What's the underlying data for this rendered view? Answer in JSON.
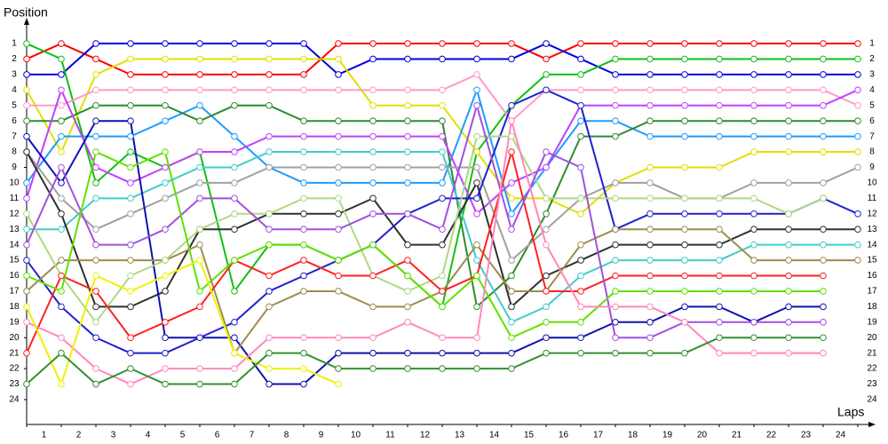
{
  "chart_data": {
    "type": "line",
    "y_label": "Position",
    "x_label": "Laps",
    "x": [
      0,
      1,
      2,
      3,
      4,
      5,
      6,
      7,
      8,
      9,
      10,
      11,
      12,
      13,
      14,
      15,
      16,
      17,
      18,
      19,
      20,
      21,
      22,
      23,
      24
    ],
    "laps": [
      "1",
      "2",
      "3",
      "4",
      "5",
      "6",
      "7",
      "8",
      "9",
      "10",
      "11",
      "12",
      "13",
      "14",
      "15",
      "16",
      "17",
      "18",
      "19",
      "20",
      "21",
      "22",
      "23",
      "24"
    ],
    "xlim": [
      0,
      24
    ],
    "ylim": [
      0,
      25
    ],
    "y_inverted": true,
    "yticks": [
      1,
      2,
      3,
      4,
      5,
      6,
      7,
      8,
      9,
      10,
      11,
      12,
      13,
      14,
      15,
      16,
      17,
      18,
      19,
      20,
      21,
      22,
      23,
      24
    ],
    "series": [
      {
        "color": "#ff0000",
        "values": [
          2,
          1,
          2,
          3,
          3,
          3,
          3,
          3,
          3,
          1,
          1,
          1,
          1,
          1,
          1,
          2,
          1,
          1,
          1,
          1,
          1,
          1,
          1,
          1,
          1
        ]
      },
      {
        "color": "#0000e0",
        "values": [
          3,
          3,
          1,
          1,
          1,
          1,
          1,
          1,
          1,
          3,
          2,
          2,
          2,
          2,
          2,
          1,
          2,
          3,
          3,
          3,
          3,
          3,
          3,
          3,
          3
        ]
      },
      {
        "color": "#10c010",
        "values": [
          1,
          2,
          10,
          8,
          9,
          8,
          17,
          14,
          14,
          15,
          14,
          16,
          18,
          8,
          5,
          3,
          3,
          2,
          2,
          2,
          2,
          2,
          2,
          2,
          2
        ]
      },
      {
        "color": "#e0e000",
        "values": [
          4,
          8,
          3,
          2,
          2,
          2,
          2,
          2,
          2,
          2,
          5,
          5,
          5,
          8,
          11,
          11,
          12,
          10,
          9,
          9,
          9,
          8,
          8,
          8,
          8
        ]
      },
      {
        "color": "#ff99cc",
        "values": [
          5,
          5,
          4,
          4,
          4,
          4,
          4,
          4,
          4,
          4,
          4,
          4,
          4,
          3,
          6,
          4,
          4,
          4,
          4,
          4,
          4,
          4,
          4,
          4,
          5
        ]
      },
      {
        "color": "#1e9bff",
        "values": [
          10,
          7,
          7,
          7,
          6,
          5,
          7,
          9,
          10,
          10,
          10,
          10,
          10,
          4,
          12,
          9,
          6,
          6,
          7,
          7,
          7,
          7,
          7,
          7,
          7
        ]
      },
      {
        "color": "#2e8b2e",
        "values": [
          6,
          6,
          5,
          5,
          5,
          6,
          5,
          5,
          6,
          6,
          6,
          6,
          6,
          18,
          16,
          12,
          7,
          7,
          6,
          6,
          6,
          6,
          6,
          6,
          6
        ]
      },
      {
        "color": "#c040ff",
        "values": [
          11,
          4,
          9,
          10,
          9,
          8,
          8,
          7,
          7,
          7,
          7,
          7,
          7,
          12,
          10,
          9,
          5,
          5,
          5,
          5,
          5,
          5,
          5,
          5,
          4
        ]
      },
      {
        "color": "#40cccc",
        "values": [
          13,
          13,
          11,
          11,
          10,
          9,
          9,
          8,
          8,
          8,
          8,
          8,
          8,
          15,
          19,
          18,
          16,
          15,
          15,
          15,
          15,
          14,
          14,
          14,
          14
        ]
      },
      {
        "color": "#a0a0a0",
        "values": [
          8,
          11,
          13,
          12,
          11,
          10,
          10,
          9,
          9,
          9,
          9,
          9,
          9,
          9,
          15,
          13,
          11,
          10,
          10,
          11,
          11,
          10,
          10,
          10,
          9
        ]
      },
      {
        "color": "#303030",
        "values": [
          8,
          12,
          18,
          18,
          17,
          13,
          13,
          12,
          12,
          12,
          11,
          14,
          14,
          10,
          18,
          16,
          15,
          14,
          14,
          14,
          14,
          13,
          13,
          13,
          13
        ]
      },
      {
        "color": "#1010b0",
        "values": [
          7,
          10,
          6,
          6,
          20,
          20,
          20,
          23,
          23,
          21,
          21,
          21,
          21,
          21,
          21,
          20,
          20,
          19,
          19,
          18,
          18,
          19,
          18,
          18,
          null
        ]
      },
      {
        "color": "#2020d0",
        "values": [
          15,
          18,
          20,
          21,
          21,
          20,
          19,
          17,
          16,
          15,
          14,
          12,
          11,
          11,
          5,
          4,
          5,
          13,
          12,
          12,
          12,
          12,
          12,
          11,
          12
        ]
      },
      {
        "color": "#9c8c50",
        "values": [
          17,
          15,
          15,
          15,
          15,
          14,
          21,
          18,
          17,
          17,
          18,
          18,
          17,
          14,
          17,
          17,
          14,
          13,
          13,
          13,
          13,
          15,
          15,
          15,
          15
        ]
      },
      {
        "color": "#b0d880",
        "values": [
          12,
          16,
          19,
          16,
          15,
          13,
          12,
          12,
          11,
          11,
          16,
          17,
          16,
          7,
          7,
          11,
          11,
          11,
          11,
          11,
          11,
          11,
          12,
          11,
          null
        ]
      },
      {
        "color": "#ff2020",
        "values": [
          21,
          16,
          17,
          20,
          19,
          18,
          15,
          16,
          15,
          16,
          16,
          15,
          17,
          16,
          8,
          17,
          17,
          16,
          16,
          16,
          16,
          16,
          16,
          16,
          null
        ]
      },
      {
        "color": "#a050e0",
        "values": [
          14,
          9,
          14,
          14,
          13,
          11,
          11,
          13,
          13,
          13,
          12,
          12,
          13,
          5,
          13,
          8,
          9,
          20,
          20,
          19,
          19,
          19,
          19,
          19,
          null
        ]
      },
      {
        "color": "#60e000",
        "values": [
          16,
          17,
          8,
          9,
          8,
          17,
          15,
          14,
          14,
          15,
          14,
          16,
          18,
          16,
          20,
          19,
          19,
          17,
          17,
          17,
          17,
          17,
          17,
          17,
          null
        ]
      },
      {
        "color": "#ff88bb",
        "values": [
          19,
          20,
          22,
          23,
          22,
          22,
          22,
          20,
          20,
          20,
          20,
          19,
          20,
          20,
          6,
          14,
          18,
          18,
          18,
          19,
          21,
          21,
          21,
          21,
          null
        ]
      },
      {
        "color": "#f0f000",
        "values": [
          18,
          23,
          16,
          17,
          16,
          15,
          21,
          22,
          22,
          23,
          null,
          null,
          null,
          null,
          null,
          null,
          null,
          null,
          null,
          null,
          null,
          null,
          null,
          null,
          null
        ]
      },
      {
        "color": "#309030",
        "values": [
          23,
          21,
          23,
          22,
          23,
          23,
          23,
          21,
          21,
          22,
          22,
          22,
          22,
          22,
          22,
          21,
          21,
          21,
          21,
          21,
          20,
          20,
          20,
          20,
          null
        ]
      }
    ]
  }
}
